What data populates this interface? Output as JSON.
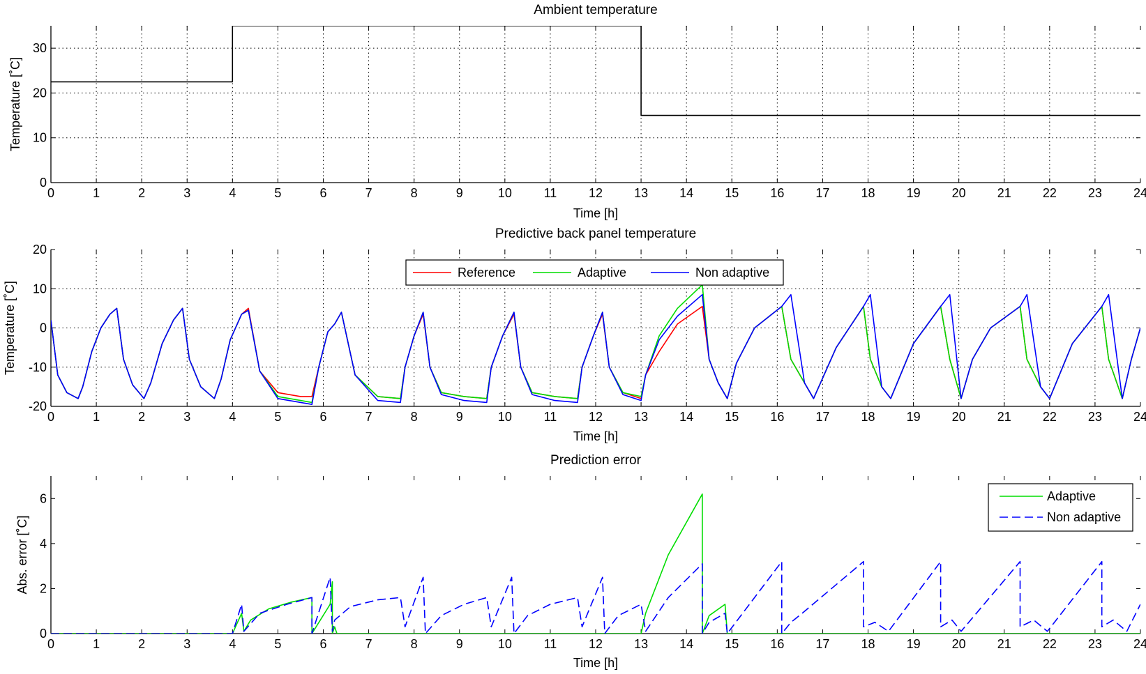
{
  "chart_data": [
    {
      "type": "line",
      "title": "Ambient temperature",
      "xlabel": "Time [h]",
      "ylabel": "Temperature [˚C]",
      "xlim": [
        0,
        24
      ],
      "ylim": [
        0,
        35
      ],
      "xticks": [
        0,
        1,
        2,
        3,
        4,
        5,
        6,
        7,
        8,
        9,
        10,
        11,
        12,
        13,
        14,
        15,
        16,
        17,
        18,
        19,
        20,
        21,
        22,
        23,
        24
      ],
      "yticks": [
        0,
        10,
        20,
        30
      ],
      "grid": true,
      "legend": null,
      "series": [
        {
          "color": "#000000",
          "dash": "solid",
          "x": [
            0,
            4,
            4,
            13,
            13,
            24
          ],
          "y": [
            22.5,
            22.5,
            35,
            35,
            15,
            15
          ]
        }
      ]
    },
    {
      "type": "line",
      "title": "Predictive back panel temperature",
      "xlabel": "Time [h]",
      "ylabel": "Temperature [˚C]",
      "xlim": [
        0,
        24
      ],
      "ylim": [
        -20,
        20
      ],
      "xticks": [
        0,
        1,
        2,
        3,
        4,
        5,
        6,
        7,
        8,
        9,
        10,
        11,
        12,
        13,
        14,
        15,
        16,
        17,
        18,
        19,
        20,
        21,
        22,
        23,
        24
      ],
      "yticks": [
        -20,
        -10,
        0,
        10,
        20
      ],
      "grid": true,
      "legend": {
        "position": "top-center",
        "orientation": "horizontal"
      },
      "series": [
        {
          "name": "Reference",
          "color": "#ff0000",
          "dash": "solid",
          "x": [
            0,
            0.15,
            0.35,
            0.6,
            0.7,
            0.9,
            1.1,
            1.3,
            1.45,
            1.6,
            1.8,
            2.05,
            2.2,
            2.45,
            2.7,
            2.9,
            3.05,
            3.3,
            3.6,
            3.75,
            3.95,
            4.2,
            4.35,
            4.6,
            5.0,
            5.5,
            5.75,
            5.9,
            6.1,
            6.25,
            6.4,
            6.7,
            7.2,
            7.7,
            7.8,
            8.0,
            8.2,
            8.35,
            8.6,
            9.1,
            9.6,
            9.7,
            9.95,
            10.2,
            10.35,
            10.6,
            11.1,
            11.6,
            11.7,
            11.95,
            12.15,
            12.3,
            12.6,
            13.0,
            13.1,
            13.4,
            13.8,
            14.35,
            14.5,
            14.7,
            14.9,
            15.1,
            15.5,
            16.1,
            16.3,
            16.6,
            16.8,
            17.3,
            17.9,
            18.05,
            18.3,
            18.5,
            19.0,
            19.6,
            19.8,
            20.05,
            20.3,
            20.7,
            21.35,
            21.5,
            21.8,
            22.0,
            22.5,
            23.15,
            23.3,
            23.6,
            23.8,
            24.0
          ],
          "y": [
            2,
            -12,
            -16.5,
            -18,
            -15,
            -6,
            0,
            3.5,
            5,
            -8,
            -14.5,
            -18,
            -14,
            -4,
            2,
            5,
            -8,
            -15,
            -18,
            -13,
            -3,
            3.5,
            5,
            -11,
            -16.5,
            -17.5,
            -17.5,
            -10,
            -1,
            1,
            4,
            -12,
            -17.5,
            -18,
            -10,
            -2,
            3.5,
            -10,
            -16.5,
            -17.5,
            -18,
            -10,
            -2,
            3.5,
            -10,
            -16.5,
            -17.5,
            -18,
            -10,
            -2,
            3.5,
            -10,
            -16.5,
            -18,
            -12,
            -6,
            1,
            5.5,
            -8,
            -14,
            -18,
            -9,
            0,
            5.5,
            -8,
            -14,
            -18,
            -5,
            5.5,
            -8,
            -15,
            -18,
            -4,
            5.5,
            -8,
            -18,
            -8,
            0,
            5.5,
            -8,
            -15,
            -18,
            -4,
            5.5,
            -8,
            -18,
            -8,
            0
          ]
        },
        {
          "name": "Adaptive",
          "color": "#00dd00",
          "dash": "solid",
          "x": [
            0,
            0.15,
            0.35,
            0.6,
            0.7,
            0.9,
            1.1,
            1.3,
            1.45,
            1.6,
            1.8,
            2.05,
            2.2,
            2.45,
            2.7,
            2.9,
            3.05,
            3.3,
            3.6,
            3.75,
            3.95,
            4.2,
            4.35,
            4.6,
            5.0,
            5.5,
            5.75,
            5.9,
            6.1,
            6.25,
            6.4,
            6.7,
            7.2,
            7.7,
            7.8,
            8.0,
            8.2,
            8.35,
            8.6,
            9.1,
            9.6,
            9.7,
            9.95,
            10.2,
            10.35,
            10.6,
            11.1,
            11.6,
            11.7,
            11.95,
            12.15,
            12.3,
            12.6,
            13.0,
            13.1,
            13.4,
            13.8,
            14.35,
            14.5,
            14.7,
            14.9,
            15.1,
            15.5,
            16.1,
            16.3,
            16.6,
            16.8,
            17.3,
            17.9,
            18.05,
            18.3,
            18.5,
            19.0,
            19.6,
            19.8,
            20.05,
            20.3,
            20.7,
            21.35,
            21.5,
            21.8,
            22.0,
            22.5,
            23.15,
            23.3,
            23.6,
            23.8,
            24.0
          ],
          "y": [
            2,
            -12,
            -16.5,
            -18,
            -15,
            -6,
            0,
            3.5,
            5,
            -8,
            -14.5,
            -18,
            -14,
            -4,
            2,
            5,
            -8,
            -15,
            -18,
            -13,
            -3,
            3.5,
            4.5,
            -11,
            -17.5,
            -18.5,
            -19,
            -10,
            -1,
            1,
            4,
            -12,
            -17.5,
            -18,
            -10,
            -2,
            4,
            -10,
            -16.5,
            -17.5,
            -18,
            -10,
            -2,
            4,
            -10,
            -16.5,
            -17.5,
            -18,
            -10,
            -2,
            4,
            -10,
            -16.5,
            -17.5,
            -12,
            -2,
            5,
            11,
            -8,
            -14,
            -18,
            -9,
            0,
            5.5,
            -8,
            -14,
            -18,
            -5,
            5.5,
            -8,
            -15,
            -18,
            -4,
            5.5,
            -8,
            -18,
            -8,
            0,
            5.5,
            -8,
            -15,
            -18,
            -4,
            5.5,
            -8,
            -18,
            -8,
            0
          ]
        },
        {
          "name": "Non adaptive",
          "color": "#0000ff",
          "dash": "solid",
          "x": [
            0,
            0.15,
            0.35,
            0.6,
            0.7,
            0.9,
            1.1,
            1.3,
            1.45,
            1.6,
            1.8,
            2.05,
            2.2,
            2.45,
            2.7,
            2.9,
            3.05,
            3.3,
            3.6,
            3.75,
            3.95,
            4.2,
            4.35,
            4.6,
            5.0,
            5.5,
            5.75,
            5.9,
            6.1,
            6.25,
            6.4,
            6.7,
            7.2,
            7.7,
            7.8,
            8.0,
            8.2,
            8.35,
            8.6,
            9.1,
            9.6,
            9.7,
            9.95,
            10.2,
            10.35,
            10.6,
            11.1,
            11.6,
            11.7,
            11.95,
            12.15,
            12.3,
            12.6,
            13.0,
            13.1,
            13.4,
            13.8,
            14.35,
            14.5,
            14.7,
            14.9,
            15.1,
            15.5,
            16.1,
            16.3,
            16.6,
            16.8,
            17.3,
            17.9,
            18.05,
            18.3,
            18.5,
            19.0,
            19.6,
            19.8,
            20.05,
            20.3,
            20.7,
            21.35,
            21.5,
            21.8,
            22.0,
            22.5,
            23.15,
            23.3,
            23.6,
            23.8,
            24.0
          ],
          "y": [
            2,
            -12,
            -16.5,
            -18,
            -15,
            -6,
            0,
            3.5,
            5,
            -8,
            -14.5,
            -18,
            -14,
            -4,
            2,
            5,
            -8,
            -15,
            -18,
            -13,
            -3,
            3.5,
            4.5,
            -11,
            -18,
            -19,
            -19.5,
            -10,
            -1,
            1,
            4,
            -12,
            -18.5,
            -19,
            -10,
            -2,
            4,
            -10,
            -17,
            -18.5,
            -19,
            -10,
            -2,
            4,
            -10,
            -17,
            -18.5,
            -19,
            -10,
            -2,
            4,
            -10,
            -17,
            -18.5,
            -12,
            -3,
            3,
            8.5,
            -8,
            -14,
            -18,
            -9,
            0,
            5.5,
            8.5,
            -14,
            -18,
            -5,
            5.5,
            8.5,
            -15,
            -18,
            -4,
            5.5,
            8.5,
            -18,
            -8,
            0,
            5.5,
            8.5,
            -15,
            -18,
            -4,
            5.5,
            8.5,
            -18,
            -8,
            0
          ]
        }
      ]
    },
    {
      "type": "line",
      "title": "Prediction error",
      "xlabel": "Time [h]",
      "ylabel": "Abs. error [˚C]",
      "xlim": [
        0,
        24
      ],
      "ylim": [
        0,
        7
      ],
      "xticks": [
        0,
        1,
        2,
        3,
        4,
        5,
        6,
        7,
        8,
        9,
        10,
        11,
        12,
        13,
        14,
        15,
        16,
        17,
        18,
        19,
        20,
        21,
        22,
        23,
        24
      ],
      "yticks": [
        0,
        2,
        4,
        6
      ],
      "grid": false,
      "legend": {
        "position": "top-right",
        "orientation": "vertical"
      },
      "series": [
        {
          "name": "Adaptive",
          "color": "#00dd00",
          "dash": "solid",
          "x": [
            0,
            4.0,
            4.2,
            4.25,
            4.4,
            4.8,
            5.3,
            5.75,
            5.75,
            6.15,
            6.2,
            6.2,
            6.25,
            6.3,
            13.0,
            13.1,
            13.6,
            14.35,
            14.35,
            14.5,
            14.85,
            14.9,
            24.0
          ],
          "y": [
            0,
            0,
            0.9,
            0.1,
            0.6,
            1.1,
            1.4,
            1.6,
            0,
            1.3,
            2.3,
            0,
            0.3,
            0,
            0,
            0.9,
            3.5,
            6.2,
            0,
            0.8,
            1.3,
            0,
            0
          ]
        },
        {
          "name": "Non adaptive",
          "color": "#0000ff",
          "dash": "dashed",
          "x": [
            0,
            4.0,
            4.2,
            4.25,
            4.6,
            5.2,
            5.75,
            5.75,
            6.15,
            6.2,
            6.25,
            6.6,
            7.2,
            7.7,
            7.8,
            8.2,
            8.25,
            8.6,
            9.1,
            9.6,
            9.7,
            10.15,
            10.2,
            10.5,
            11.0,
            11.6,
            11.7,
            12.15,
            12.2,
            12.5,
            13.0,
            13.1,
            13.6,
            14.35,
            14.35,
            14.5,
            14.85,
            14.9,
            16.1,
            16.1,
            16.3,
            16.55,
            17.9,
            17.9,
            18.15,
            18.45,
            19.6,
            19.6,
            19.85,
            20.05,
            21.35,
            21.35,
            21.65,
            21.95,
            23.15,
            23.15,
            23.4,
            23.7,
            24.0
          ],
          "y": [
            0,
            0,
            1.3,
            0.1,
            0.9,
            1.3,
            1.6,
            0,
            2.5,
            0.1,
            0.6,
            1.2,
            1.5,
            1.6,
            0.3,
            2.5,
            0,
            0.8,
            1.3,
            1.6,
            0.3,
            2.5,
            0,
            0.8,
            1.3,
            1.6,
            0.3,
            2.5,
            0,
            0.8,
            1.3,
            0.1,
            1.6,
            3.1,
            0,
            0.5,
            0.9,
            0,
            3.2,
            0,
            0.5,
            0.9,
            3.2,
            0.3,
            0.5,
            0.1,
            3.2,
            0.3,
            0.6,
            0.1,
            3.2,
            0.3,
            0.6,
            0.1,
            3.2,
            0.3,
            0.6,
            0.1,
            1.3
          ]
        }
      ]
    }
  ]
}
